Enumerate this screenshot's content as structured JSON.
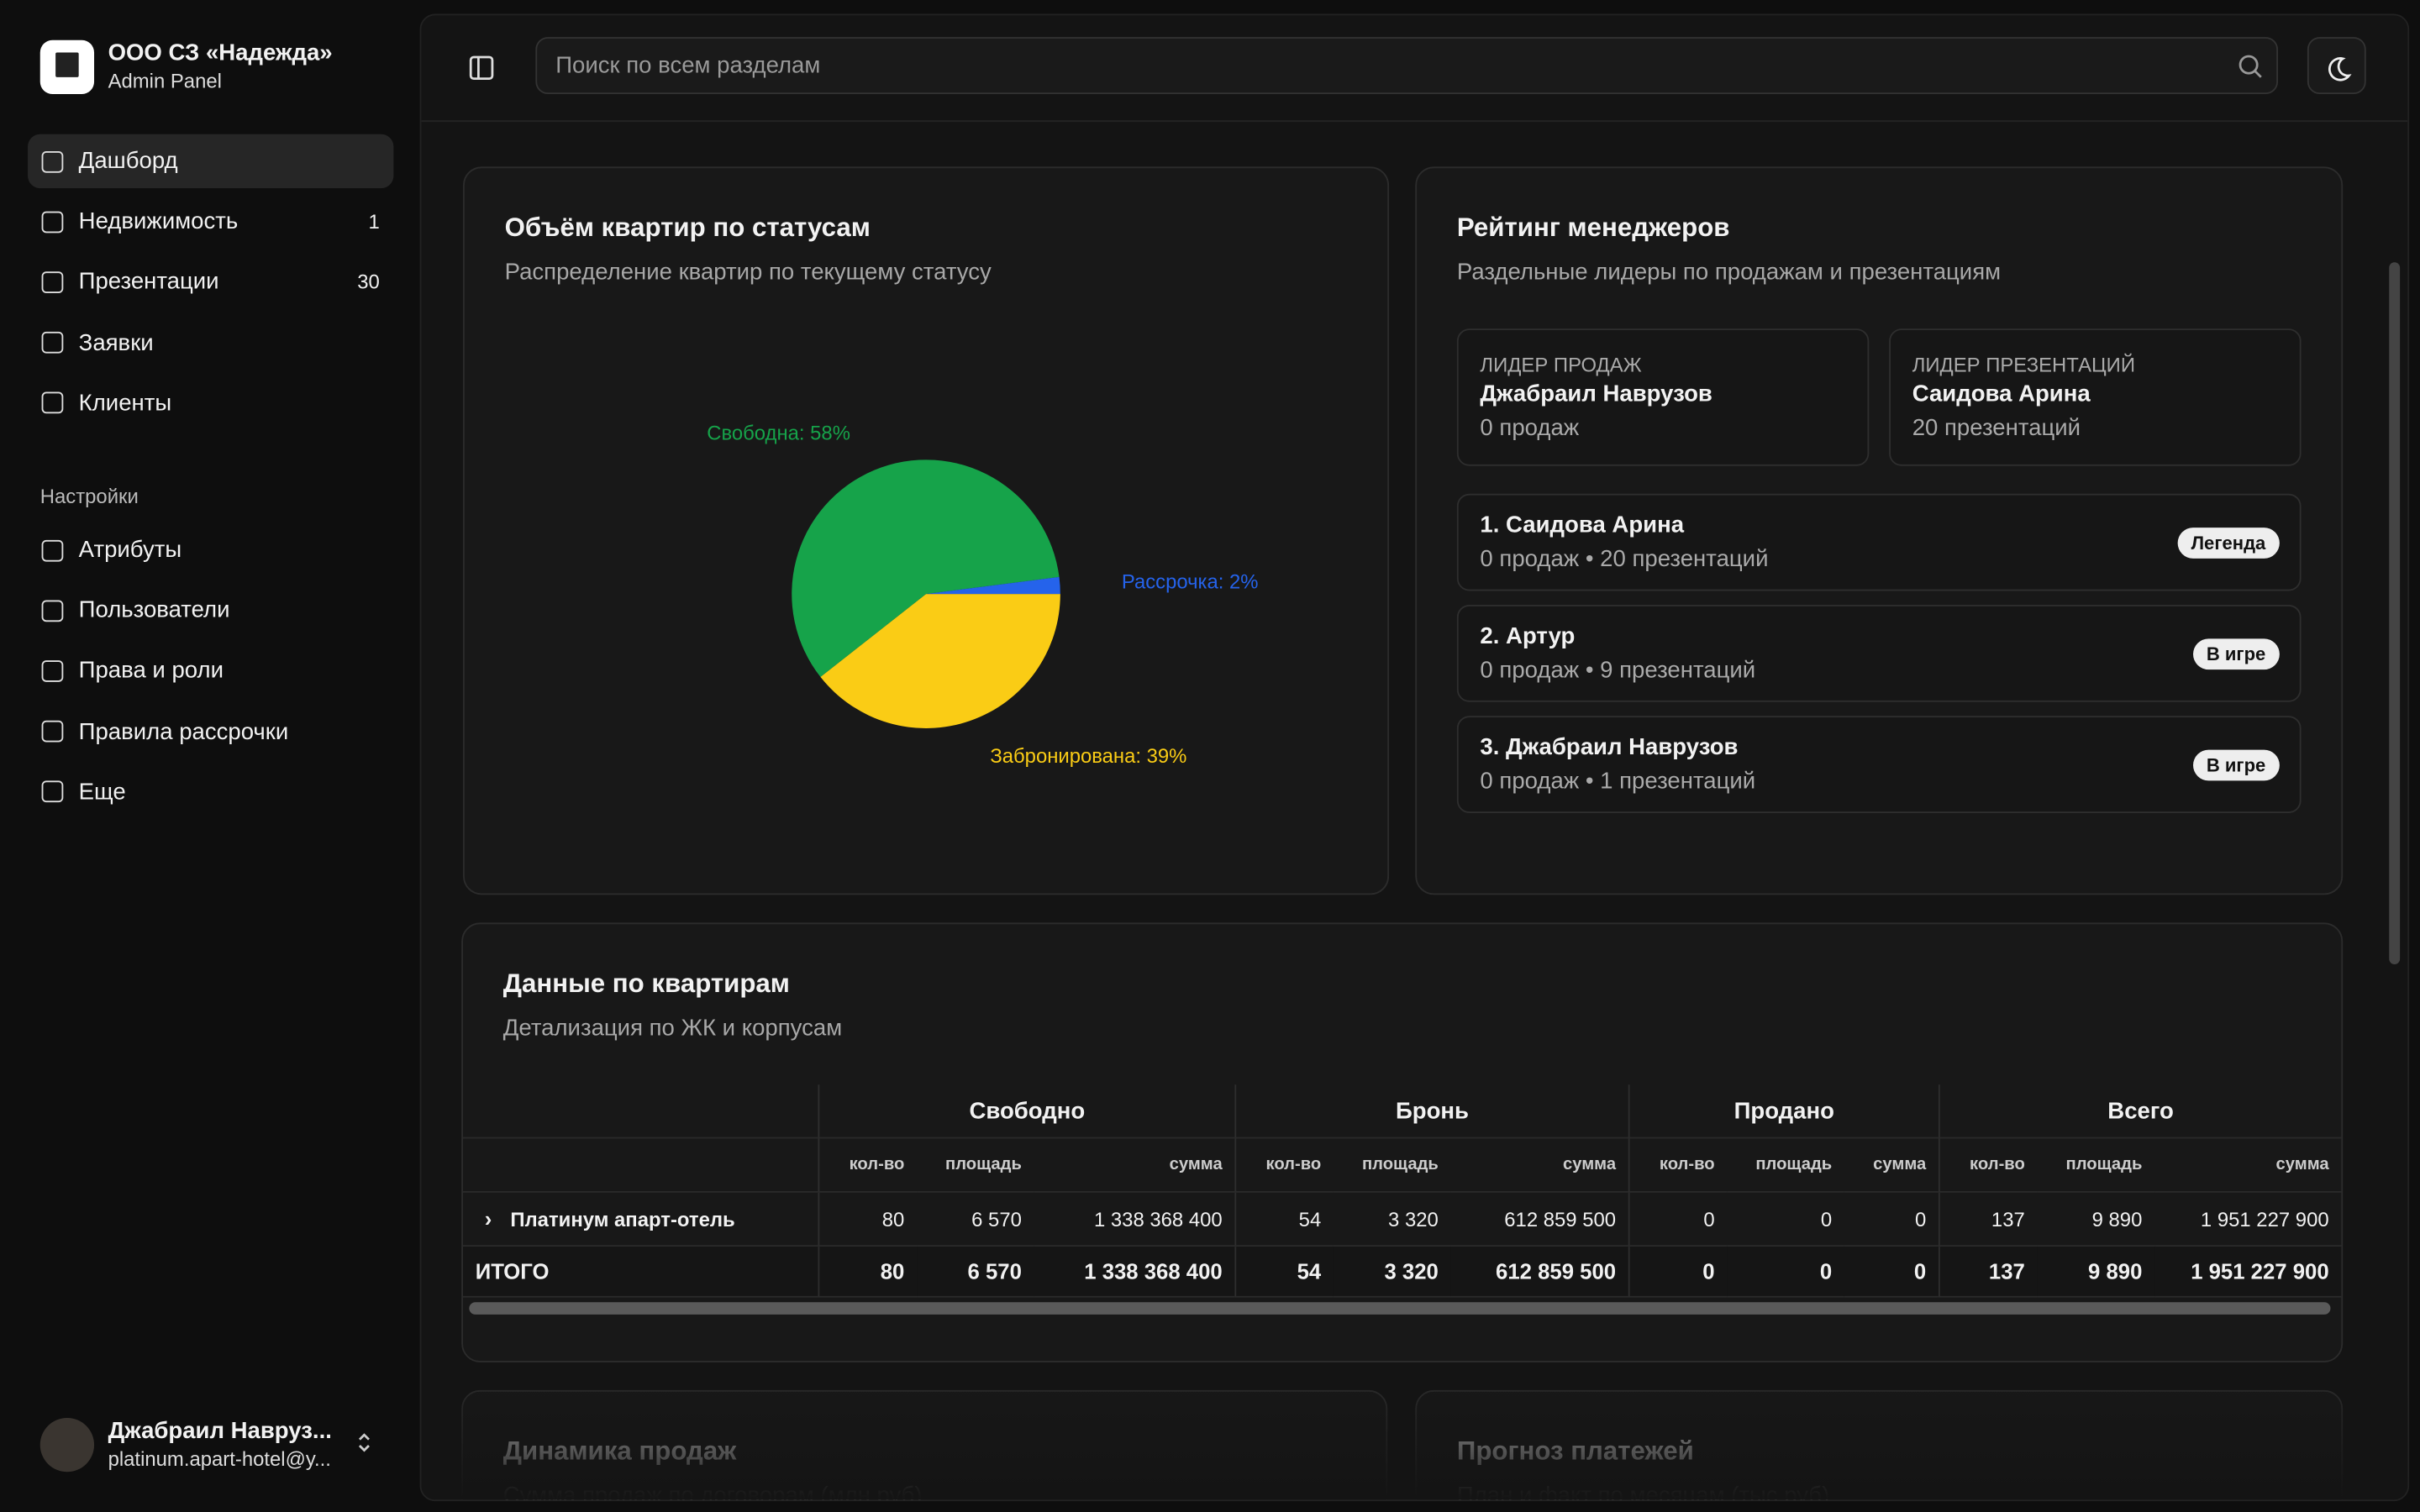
{
  "sidebar": {
    "org": "ООО СЗ «Надежда»",
    "panel": "Admin Panel",
    "nav": [
      {
        "label": "Дашборд"
      },
      {
        "label": "Недвижимость",
        "count": "1"
      },
      {
        "label": "Презентации",
        "count": "30"
      },
      {
        "label": "Заявки"
      },
      {
        "label": "Клиенты"
      }
    ],
    "settings_title": "Настройки",
    "settings": [
      {
        "label": "Атрибуты"
      },
      {
        "label": "Пользователи"
      },
      {
        "label": "Права и роли"
      },
      {
        "label": "Правила рассрочки"
      },
      {
        "label": "Еще"
      }
    ],
    "user": {
      "name": "Джабраил Навруз...",
      "email": "platinum.apart-hotel@y..."
    }
  },
  "topbar": {
    "search_placeholder": "Поиск по всем разделам"
  },
  "status_card": {
    "title": "Объём квартир по статусам",
    "subtitle": "Распределение квартир по текущему статусу",
    "chart": {
      "type": "pie",
      "values": [
        39,
        58,
        2
      ],
      "value_labels": [
        "Забронирована: 39%",
        "Свободна: 58%",
        "Рассрочка: 2%"
      ],
      "colors": [
        "#facc15",
        "#16a34a",
        "#2563eb"
      ]
    }
  },
  "rating_card": {
    "title": "Рейтинг менеджеров",
    "subtitle": "Раздельные лидеры по продажам и презентациям",
    "leaders": [
      {
        "label": "ЛИДЕР ПРОДАЖ",
        "name": "Джабраил Наврузов",
        "stat": "0 продаж"
      },
      {
        "label": "ЛИДЕР ПРЕЗЕНТАЦИЙ",
        "name": "Саидова Арина",
        "stat": "20 презентаций"
      }
    ],
    "ranking": [
      {
        "name": "1. Саидова Арина",
        "stat": "0 продаж • 20 презентаций",
        "badge": "Легенда"
      },
      {
        "name": "2. Артур",
        "stat": "0 продаж • 9 презентаций",
        "badge": "В игре"
      },
      {
        "name": "3. Джабраил Наврузов",
        "stat": "0 продаж • 1 презентаций",
        "badge": "В игре"
      }
    ]
  },
  "table_card": {
    "title": "Данные по квартирам",
    "subtitle": "Детализация по ЖК и корпусам",
    "groups": [
      "Свободно",
      "Бронь",
      "Продано",
      "Всего"
    ],
    "subheaders": [
      "кол-во",
      "площадь",
      "сумма"
    ],
    "rows": [
      [
        "Платинум апарт-отель",
        "80",
        "6 570",
        "1 338 368 400",
        "54",
        "3 320",
        "612 859 500",
        "0",
        "0",
        "0",
        "137",
        "9 890",
        "1 951 227 900"
      ],
      [
        "ИТОГО",
        "80",
        "6 570",
        "1 338 368 400",
        "54",
        "3 320",
        "612 859 500",
        "0",
        "0",
        "0",
        "137",
        "9 890",
        "1 951 227 900"
      ]
    ]
  },
  "bottom_cards": [
    {
      "title": "Динамика продаж",
      "subtitle": "Сумма продаж по договорам (млн руб)"
    },
    {
      "title": "Прогноз платежей",
      "subtitle": "План и факт по месяцам (тыс руб)"
    }
  ]
}
